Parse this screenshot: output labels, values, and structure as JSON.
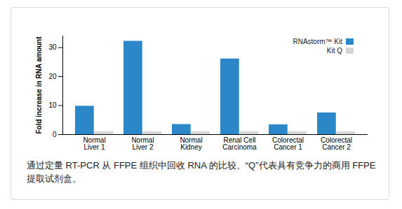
{
  "chart_data": {
    "type": "bar",
    "categories": [
      "Normal\nLiver 1",
      "Normal\nLiver 2",
      "Normal\nKidney",
      "Renal Cell\nCarcinoma",
      "Colorectal\nCancer 1",
      "Colorectal\nCancer 2"
    ],
    "series": [
      {
        "name": "RNAstorm™ Kit",
        "color": "#2b87c8",
        "values": [
          9.8,
          32.2,
          3.5,
          26.1,
          3.4,
          7.5
        ]
      },
      {
        "name": "Kit Q",
        "color": "#d6d6d6",
        "values": [
          1,
          1,
          1,
          1,
          1,
          1
        ]
      }
    ],
    "ylabel": "Fold increase in RNA amount",
    "ylim": [
      0,
      34
    ],
    "yticks": [
      0,
      10,
      20,
      30
    ],
    "legend": "top-right",
    "caption": "通过定量 RT-PCR 从 FFPE 组织中回收 RNA 的比较。“Q”代表具有竞争力的商用 FFPE 提取试剂盒。"
  }
}
